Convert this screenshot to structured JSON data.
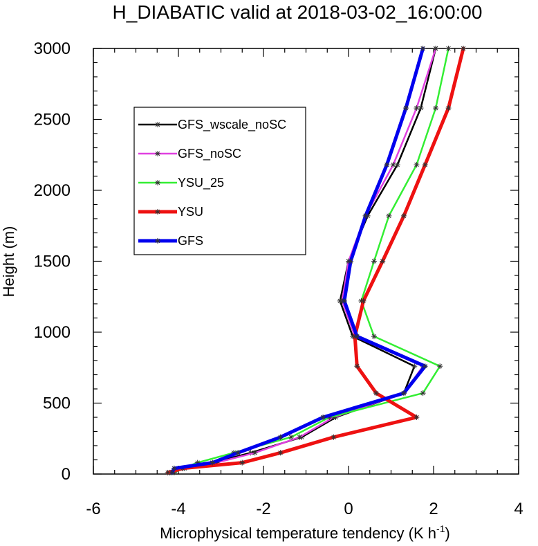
{
  "chart_data": {
    "type": "line",
    "title": "H_DIABATIC valid at 2018-03-02_16:00:00",
    "xlabel": "Microphysical temperature tendency (K h",
    "xlabel_sup": "-1",
    "xlabel_tail": ")",
    "ylabel": "Height (m)",
    "xlim": [
      -6,
      4
    ],
    "ylim": [
      0,
      3000
    ],
    "xticks": [
      -6,
      -4,
      -2,
      0,
      2,
      4
    ],
    "xtick_labels": [
      "-6",
      "-4",
      "-2",
      "0",
      "2",
      "4"
    ],
    "yticks": [
      0,
      500,
      1000,
      1500,
      2000,
      2500,
      3000
    ],
    "ytick_labels": [
      "0",
      "500",
      "1000",
      "1500",
      "2000",
      "2500",
      "3000"
    ],
    "grid": false,
    "legend_position": "upper-left",
    "heights": [
      10,
      40,
      80,
      150,
      260,
      400,
      570,
      760,
      970,
      1220,
      1500,
      1820,
      2180,
      2580,
      3000
    ],
    "series": [
      {
        "name": "GFS_wscale_noSC",
        "color": "#000000",
        "line_width": "thin",
        "values": [
          -4.2,
          -3.9,
          -3.2,
          -2.3,
          -1.1,
          -0.3,
          1.3,
          1.55,
          0.1,
          -0.2,
          0.0,
          0.45,
          1.15,
          1.7,
          2.05
        ]
      },
      {
        "name": "GFS_noSC",
        "color": "#e040e0",
        "line_width": "thin",
        "values": [
          -4.2,
          -3.85,
          -3.1,
          -2.2,
          -1.15,
          -0.35,
          1.3,
          1.75,
          0.15,
          -0.15,
          0.0,
          0.4,
          1.05,
          1.6,
          2.05
        ]
      },
      {
        "name": "YSU_25",
        "color": "#33ee33",
        "line_width": "thin",
        "values": [
          -4.1,
          -3.9,
          -3.55,
          -2.7,
          -1.35,
          -0.45,
          1.75,
          2.15,
          0.6,
          0.3,
          0.6,
          0.95,
          1.6,
          2.05,
          2.35
        ]
      },
      {
        "name": "YSU",
        "color": "#ee1111",
        "line_width": "thick",
        "values": [
          -4.25,
          -3.9,
          -2.5,
          -1.6,
          -0.35,
          1.6,
          0.65,
          0.2,
          0.15,
          0.35,
          0.8,
          1.3,
          1.8,
          2.35,
          2.7
        ]
      },
      {
        "name": "GFS",
        "color": "#0000ee",
        "line_width": "thick",
        "values": [
          -4.15,
          -4.1,
          -3.2,
          -2.6,
          -1.6,
          -0.6,
          1.3,
          1.8,
          0.2,
          -0.1,
          0.05,
          0.4,
          0.9,
          1.35,
          1.75
        ]
      }
    ]
  }
}
